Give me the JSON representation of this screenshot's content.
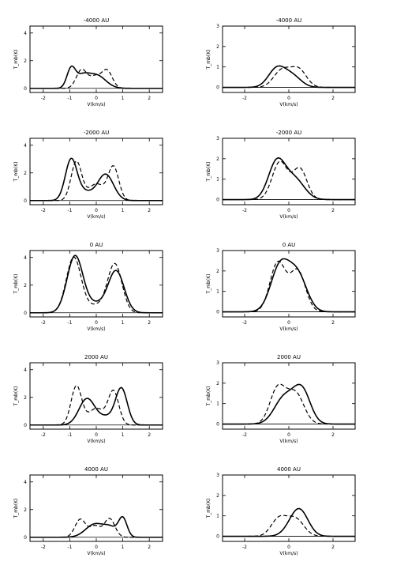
{
  "chart_data": [
    {
      "type": "line",
      "title": "-4000 AU",
      "xlabel": "V(km/s)",
      "ylabel": "T_mb(K)",
      "xlim": [
        -2.5,
        2.5
      ],
      "ylim": [
        -0.3,
        4.5
      ],
      "xticks": [
        -2,
        -1,
        0,
        1,
        2
      ],
      "yticks": [
        0,
        2,
        4
      ],
      "series": [
        {
          "style": "solid",
          "peaks": [
            [
              -0.95,
              1.35,
              0.16
            ],
            [
              -0.55,
              0.75,
              0.25
            ],
            [
              0.0,
              0.95,
              0.35
            ]
          ]
        },
        {
          "style": "dashed",
          "peaks": [
            [
              -0.55,
              1.35,
              0.2
            ],
            [
              -0.05,
              0.8,
              0.2
            ],
            [
              0.4,
              1.3,
              0.2
            ]
          ]
        }
      ]
    },
    {
      "type": "line",
      "title": "-4000 AU",
      "xlabel": "V(km/s)",
      "ylabel": "T_mb(K)",
      "xlim": [
        -3,
        3
      ],
      "ylim": [
        -0.25,
        3
      ],
      "xticks": [
        -2,
        0,
        2
      ],
      "yticks": [
        0,
        1,
        2,
        3
      ],
      "series": [
        {
          "style": "solid",
          "peaks": [
            [
              -0.55,
              0.9,
              0.38
            ],
            [
              0.15,
              0.55,
              0.4
            ]
          ]
        },
        {
          "style": "dashed",
          "peaks": [
            [
              -0.3,
              0.85,
              0.38
            ],
            [
              0.45,
              0.85,
              0.35
            ]
          ]
        }
      ]
    },
    {
      "type": "line",
      "title": "-2000 AU",
      "xlabel": "V(km/s)",
      "ylabel": "T_mb(K)",
      "xlim": [
        -2.5,
        2.5
      ],
      "ylim": [
        -0.3,
        4.5
      ],
      "xticks": [
        -2,
        -1,
        0,
        1,
        2
      ],
      "yticks": [
        0,
        2,
        4
      ],
      "series": [
        {
          "style": "solid",
          "peaks": [
            [
              -0.95,
              2.9,
              0.22
            ],
            [
              -0.45,
              0.6,
              0.3
            ],
            [
              0.35,
              1.9,
              0.3
            ]
          ]
        },
        {
          "style": "dashed",
          "peaks": [
            [
              -0.75,
              2.8,
              0.2
            ],
            [
              0.0,
              1.2,
              0.3
            ],
            [
              0.65,
              2.4,
              0.2
            ]
          ]
        }
      ]
    },
    {
      "type": "line",
      "title": "-2000 AU",
      "xlabel": "V(km/s)",
      "ylabel": "T_mb(K)",
      "xlim": [
        -3,
        3
      ],
      "ylim": [
        -0.25,
        3
      ],
      "xticks": [
        -2,
        0,
        2
      ],
      "yticks": [
        0,
        1,
        2,
        3
      ],
      "series": [
        {
          "style": "solid",
          "peaks": [
            [
              -0.55,
              1.8,
              0.38
            ],
            [
              0.25,
              1.0,
              0.45
            ]
          ]
        },
        {
          "style": "dashed",
          "peaks": [
            [
              -0.4,
              1.85,
              0.35
            ],
            [
              0.5,
              1.5,
              0.32
            ]
          ]
        }
      ]
    },
    {
      "type": "line",
      "title": "0 AU",
      "xlabel": "V(km/s)",
      "ylabel": "T_mb(K)",
      "xlim": [
        -2.5,
        2.5
      ],
      "ylim": [
        -0.3,
        4.5
      ],
      "xticks": [
        -2,
        -1,
        0,
        1,
        2
      ],
      "yticks": [
        0,
        2,
        4
      ],
      "series": [
        {
          "style": "solid",
          "peaks": [
            [
              -0.8,
              4.1,
              0.3
            ],
            [
              0.75,
              3.0,
              0.3
            ],
            [
              0.0,
              0.6,
              0.35
            ]
          ]
        },
        {
          "style": "dashed",
          "peaks": [
            [
              -0.85,
              4.0,
              0.28
            ],
            [
              0.7,
              3.5,
              0.27
            ],
            [
              0.0,
              0.5,
              0.35
            ]
          ]
        }
      ]
    },
    {
      "type": "line",
      "title": "0 AU",
      "xlabel": "V(km/s)",
      "ylabel": "T_mb(K)",
      "xlim": [
        -3,
        3
      ],
      "ylim": [
        -0.25,
        3
      ],
      "xticks": [
        -2,
        0,
        2
      ],
      "yticks": [
        0,
        1,
        2,
        3
      ],
      "series": [
        {
          "style": "solid",
          "peaks": [
            [
              -0.4,
              2.2,
              0.42
            ],
            [
              0.4,
              1.75,
              0.42
            ]
          ]
        },
        {
          "style": "dashed",
          "peaks": [
            [
              -0.5,
              2.4,
              0.35
            ],
            [
              0.4,
              2.0,
              0.35
            ]
          ]
        }
      ]
    },
    {
      "type": "line",
      "title": "2000 AU",
      "xlabel": "V(km/s)",
      "ylabel": "T_mb(K)",
      "xlim": [
        -2.5,
        2.5
      ],
      "ylim": [
        -0.3,
        4.5
      ],
      "xticks": [
        -2,
        -1,
        0,
        1,
        2
      ],
      "yticks": [
        0,
        2,
        4
      ],
      "series": [
        {
          "style": "solid",
          "peaks": [
            [
              -0.35,
              1.9,
              0.3
            ],
            [
              0.4,
              0.55,
              0.3
            ],
            [
              0.95,
              2.6,
              0.22
            ]
          ]
        },
        {
          "style": "dashed",
          "peaks": [
            [
              -0.75,
              2.8,
              0.2
            ],
            [
              0.0,
              1.2,
              0.3
            ],
            [
              0.65,
              2.4,
              0.2
            ]
          ]
        }
      ]
    },
    {
      "type": "line",
      "title": "2000 AU",
      "xlabel": "V(km/s)",
      "ylabel": "T_mb(K)",
      "xlim": [
        -3,
        3
      ],
      "ylim": [
        -0.25,
        3
      ],
      "xticks": [
        -2,
        0,
        2
      ],
      "yticks": [
        0,
        1,
        2,
        3
      ],
      "series": [
        {
          "style": "solid",
          "peaks": [
            [
              -0.2,
              1.3,
              0.45
            ],
            [
              0.6,
              1.6,
              0.38
            ]
          ]
        },
        {
          "style": "dashed",
          "peaks": [
            [
              -0.5,
              1.75,
              0.35
            ],
            [
              0.3,
              1.5,
              0.38
            ]
          ]
        }
      ]
    },
    {
      "type": "line",
      "title": "4000 AU",
      "xlabel": "V(km/s)",
      "ylabel": "T_mb(K)",
      "xlim": [
        -2.5,
        2.5
      ],
      "ylim": [
        -0.3,
        4.5
      ],
      "xticks": [
        -2,
        -1,
        0,
        1,
        2
      ],
      "yticks": [
        0,
        2,
        4
      ],
      "series": [
        {
          "style": "solid",
          "peaks": [
            [
              -0.05,
              0.95,
              0.35
            ],
            [
              0.55,
              0.6,
              0.25
            ],
            [
              1.0,
              1.35,
              0.16
            ]
          ]
        },
        {
          "style": "dashed",
          "peaks": [
            [
              -0.6,
              1.3,
              0.2
            ],
            [
              -0.05,
              0.8,
              0.2
            ],
            [
              0.5,
              1.35,
              0.2
            ]
          ]
        }
      ]
    },
    {
      "type": "line",
      "title": "4000 AU",
      "xlabel": "V(km/s)",
      "ylabel": "T_mb(K)",
      "xlim": [
        -3,
        3
      ],
      "ylim": [
        -0.25,
        3
      ],
      "xticks": [
        -2,
        0,
        2
      ],
      "yticks": [
        0,
        1,
        2,
        3
      ],
      "series": [
        {
          "style": "solid",
          "peaks": [
            [
              0.25,
              0.55,
              0.4
            ],
            [
              0.55,
              0.9,
              0.38
            ]
          ]
        },
        {
          "style": "dashed",
          "peaks": [
            [
              -0.45,
              0.85,
              0.35
            ],
            [
              0.3,
              0.85,
              0.38
            ]
          ]
        }
      ]
    }
  ]
}
